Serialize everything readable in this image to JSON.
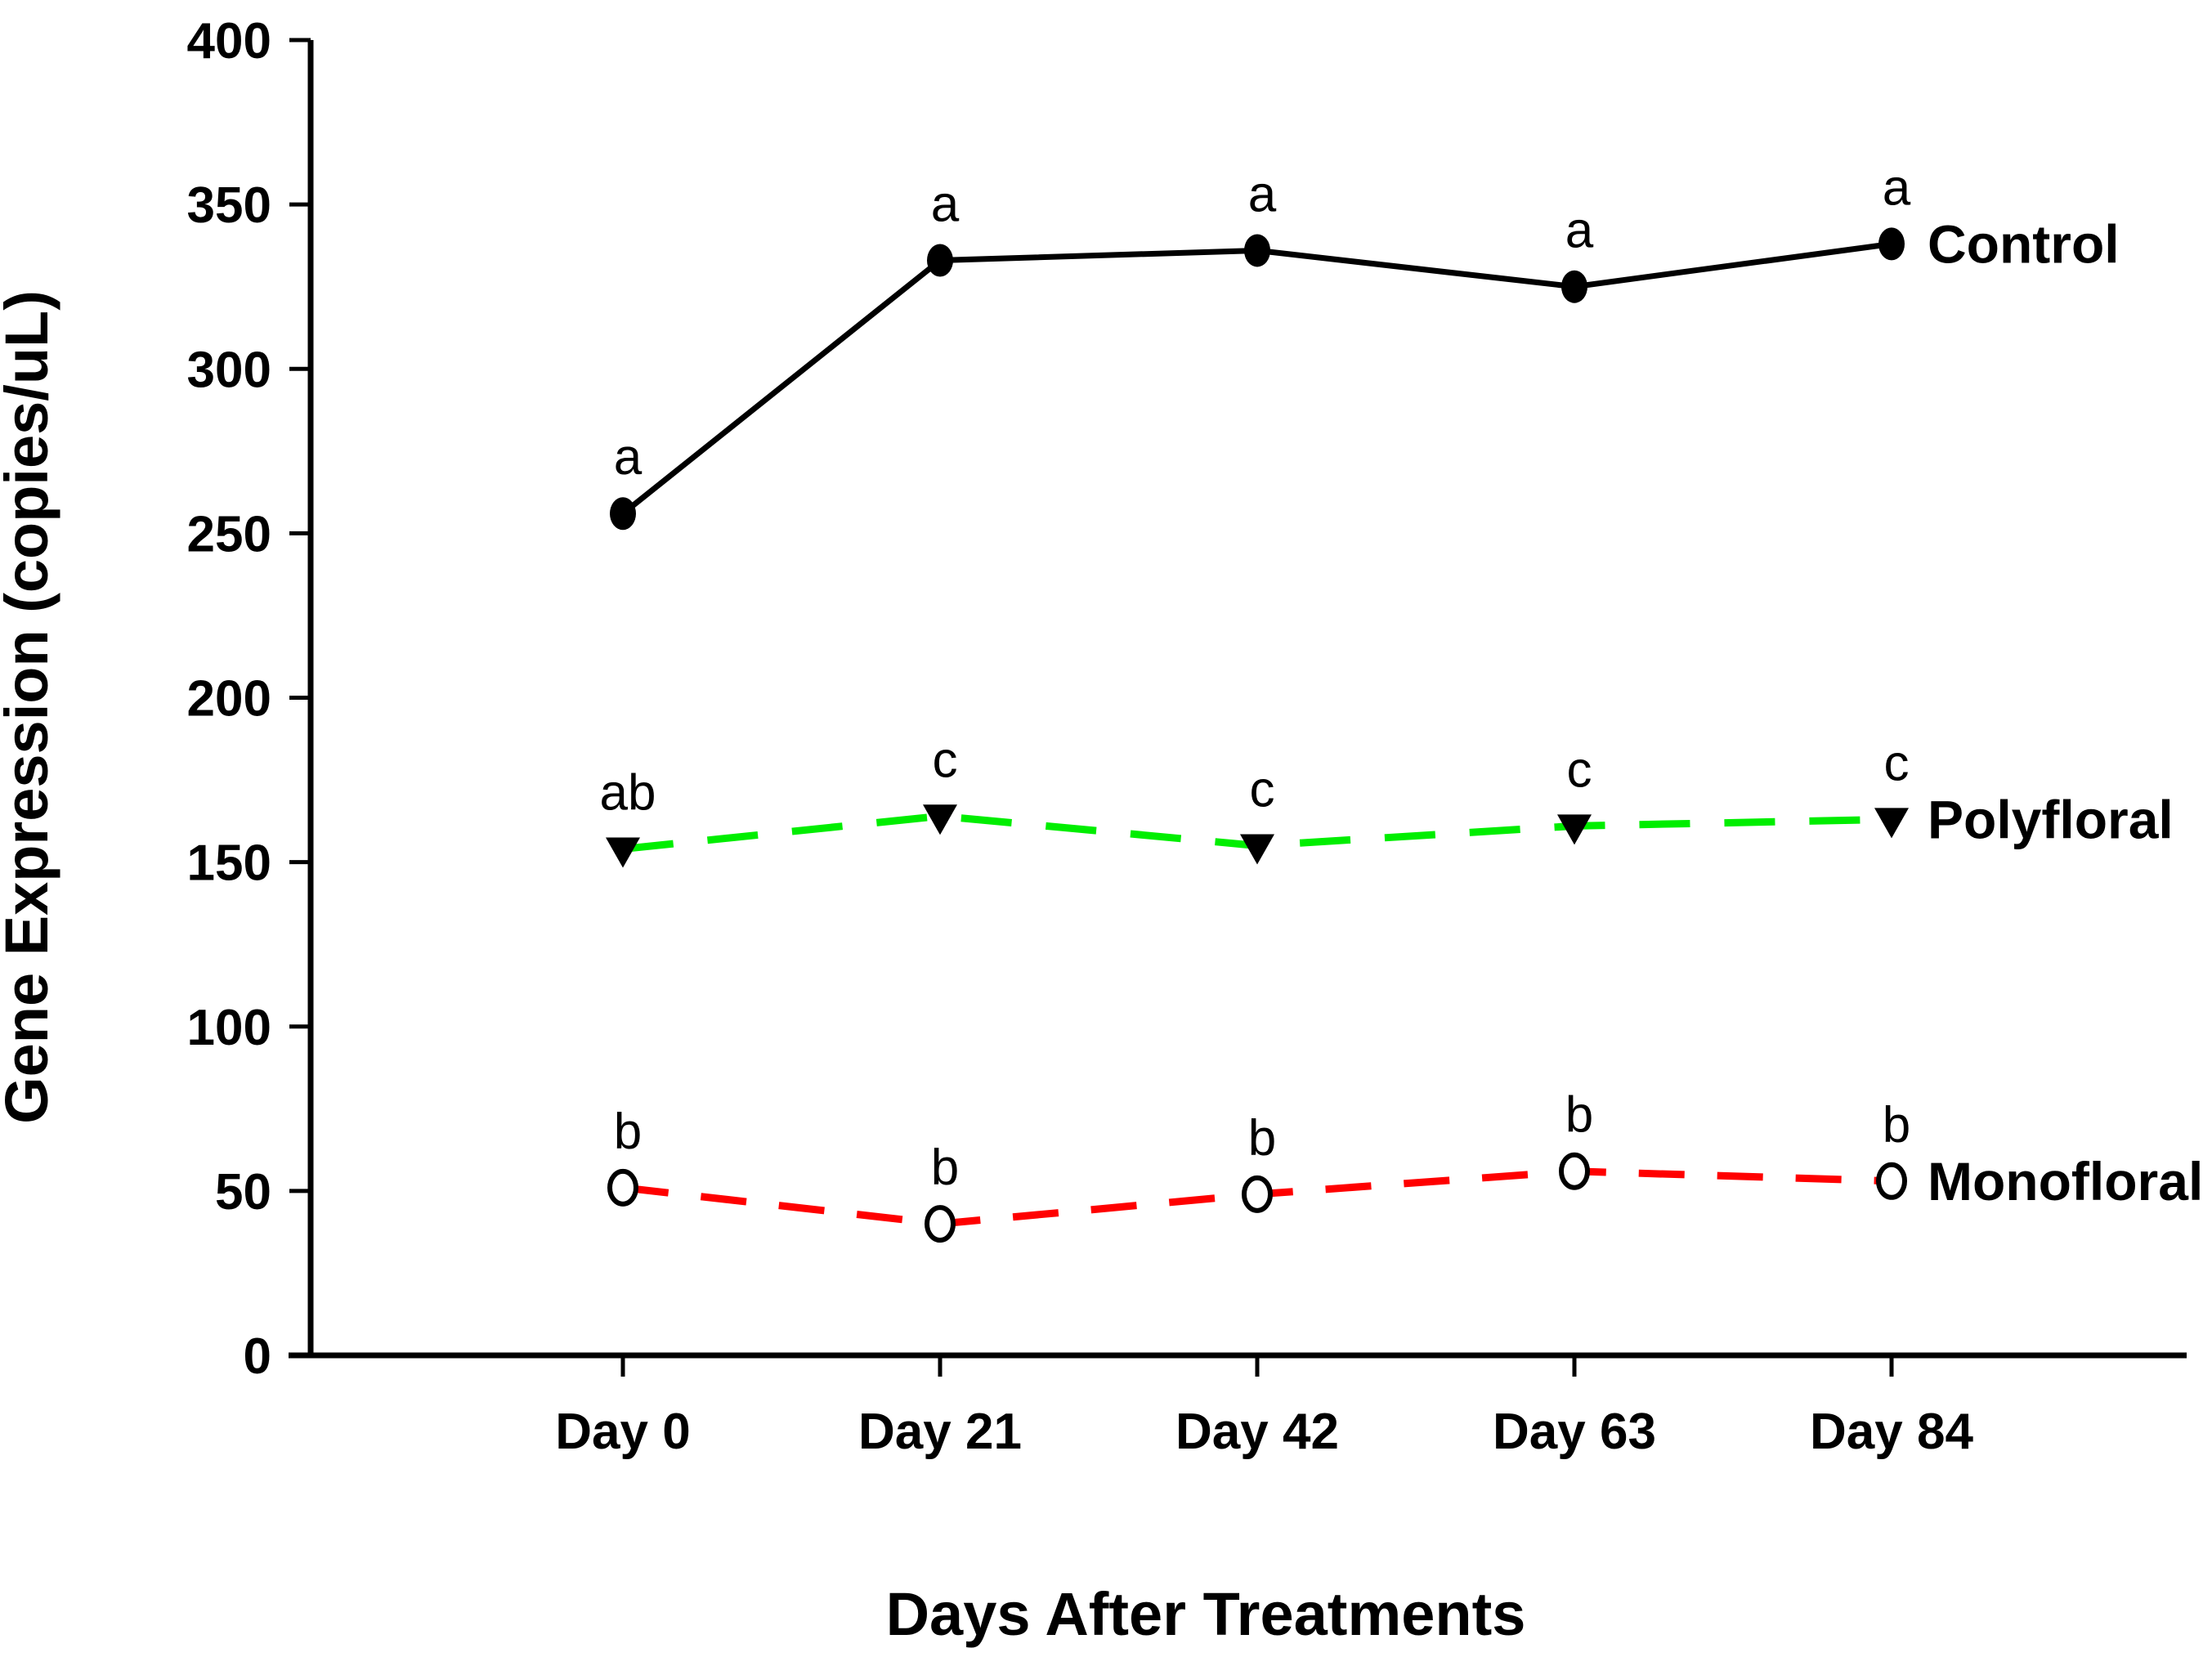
{
  "chart_data": {
    "type": "line",
    "title": "",
    "xlabel": "Days After Treatments",
    "ylabel": "Gene Expression (copies/uL)",
    "categories": [
      "Day 0",
      "Day 21",
      "Day 42",
      "Day 63",
      "Day 84"
    ],
    "ylim": [
      0,
      400
    ],
    "ytick_step": 50,
    "grid": false,
    "legend_position": "right-of-last-point",
    "series": [
      {
        "name": "Control",
        "line_color": "#000000",
        "line_style": "solid",
        "marker": "filled-circle",
        "marker_color": "#000000",
        "values": [
          256,
          333,
          336,
          325,
          338
        ],
        "sig_letters": [
          "a",
          "a",
          "a",
          "a",
          "a"
        ]
      },
      {
        "name": "Polyfloral",
        "line_color": "#00EE00",
        "line_style": "dashed",
        "marker": "filled-triangle-down",
        "marker_color": "#000000",
        "values": [
          154,
          164,
          155,
          161,
          163
        ],
        "sig_letters": [
          "ab",
          "c",
          "c",
          "c",
          "c"
        ]
      },
      {
        "name": "Monofloral",
        "line_color": "#FF0000",
        "line_style": "dashed",
        "marker": "open-circle",
        "marker_color": "#000000",
        "values": [
          51,
          40,
          49,
          56,
          53
        ],
        "sig_letters": [
          "b",
          "b",
          "b",
          "b",
          "b"
        ]
      }
    ]
  }
}
